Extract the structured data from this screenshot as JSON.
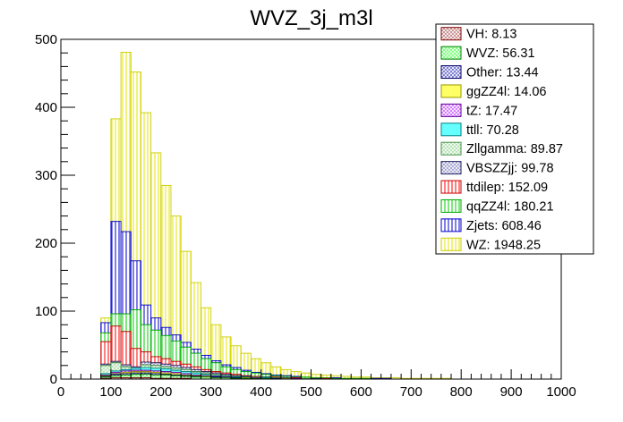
{
  "chart_data": {
    "type": "bar",
    "title": "WVZ_3j_m3l",
    "xlabel": "",
    "ylabel": "",
    "xlim": [
      0,
      1000
    ],
    "ylim": [
      0,
      500
    ],
    "x_ticks": [
      0,
      100,
      200,
      300,
      400,
      500,
      600,
      700,
      800,
      900,
      1000
    ],
    "y_ticks": [
      0,
      100,
      200,
      300,
      400,
      500
    ],
    "stacked": true,
    "bin_width": 20,
    "bins_start": [
      80,
      100,
      120,
      140,
      160,
      180,
      200,
      220,
      240,
      260,
      280,
      300,
      320,
      340,
      360,
      380,
      400,
      420,
      440,
      460,
      480,
      500,
      520,
      540,
      560,
      580,
      600,
      620,
      640,
      660,
      680,
      700,
      720,
      740,
      760,
      780,
      800,
      820,
      840,
      860,
      880,
      900
    ],
    "stack_totals": [
      90,
      383,
      481,
      452,
      392,
      333,
      285,
      240,
      188,
      142,
      105,
      80,
      62,
      49,
      38,
      30,
      24,
      18,
      14,
      11,
      9,
      7,
      6,
      5,
      4,
      3,
      3,
      2,
      2,
      2,
      1,
      1,
      1,
      1,
      1,
      0,
      0,
      0,
      0,
      0,
      0,
      0
    ],
    "boundaries": {
      "VH": [
        1,
        2,
        2,
        2,
        2,
        1,
        1,
        1,
        1,
        0,
        0,
        0,
        0,
        0,
        0,
        0,
        0,
        0,
        0,
        0,
        0,
        0,
        0,
        0,
        0,
        0,
        0,
        0,
        0,
        0,
        0,
        0,
        0,
        0,
        0,
        0,
        0,
        0,
        0,
        0,
        0,
        0
      ],
      "WVZ": [
        3,
        5,
        6,
        7,
        7,
        6,
        6,
        5,
        4,
        3,
        3,
        2,
        2,
        1,
        1,
        1,
        1,
        0,
        0,
        0,
        0,
        0,
        0,
        0,
        0,
        0,
        0,
        0,
        0,
        0,
        0,
        0,
        0,
        0,
        0,
        0,
        0,
        0,
        0,
        0,
        0,
        0
      ],
      "Other": [
        4,
        7,
        8,
        9,
        9,
        8,
        7,
        6,
        5,
        4,
        3,
        3,
        2,
        2,
        1,
        1,
        1,
        1,
        0,
        0,
        0,
        0,
        0,
        0,
        0,
        0,
        0,
        0,
        0,
        0,
        0,
        0,
        0,
        0,
        0,
        0,
        0,
        0,
        0,
        0,
        0,
        0
      ],
      "ggZZ4l": [
        5,
        8,
        10,
        11,
        11,
        10,
        9,
        8,
        6,
        5,
        4,
        3,
        2,
        2,
        2,
        1,
        1,
        1,
        1,
        0,
        0,
        0,
        0,
        0,
        0,
        0,
        0,
        0,
        0,
        0,
        0,
        0,
        0,
        0,
        0,
        0,
        0,
        0,
        0,
        0,
        0,
        0
      ],
      "tZ": [
        6,
        10,
        12,
        13,
        13,
        12,
        11,
        10,
        8,
        6,
        5,
        4,
        3,
        2,
        2,
        2,
        1,
        1,
        1,
        1,
        0,
        0,
        0,
        0,
        0,
        0,
        0,
        0,
        0,
        0,
        0,
        0,
        0,
        0,
        0,
        0,
        0,
        0,
        0,
        0,
        0,
        0
      ],
      "ttll": [
        8,
        12,
        14,
        16,
        17,
        16,
        15,
        13,
        11,
        9,
        7,
        5,
        4,
        3,
        3,
        2,
        2,
        1,
        1,
        1,
        0,
        0,
        0,
        0,
        0,
        0,
        0,
        0,
        0,
        0,
        0,
        0,
        0,
        0,
        0,
        0,
        0,
        0,
        0,
        0,
        0,
        0
      ],
      "Zllgamma": [
        20,
        24,
        18,
        16,
        21,
        20,
        18,
        16,
        14,
        11,
        9,
        7,
        5,
        4,
        3,
        3,
        2,
        2,
        1,
        1,
        1,
        0,
        0,
        0,
        0,
        0,
        0,
        0,
        0,
        0,
        0,
        0,
        0,
        0,
        0,
        0,
        0,
        0,
        0,
        0,
        0,
        0
      ],
      "VBSZZjj": [
        22,
        26,
        21,
        18,
        25,
        24,
        22,
        20,
        17,
        14,
        11,
        9,
        7,
        5,
        4,
        3,
        3,
        2,
        2,
        1,
        1,
        1,
        0,
        0,
        0,
        0,
        0,
        0,
        0,
        0,
        0,
        0,
        0,
        0,
        0,
        0,
        0,
        0,
        0,
        0,
        0,
        0
      ],
      "ttdilep": [
        55,
        78,
        70,
        45,
        40,
        33,
        30,
        26,
        22,
        18,
        14,
        11,
        9,
        7,
        5,
        4,
        3,
        3,
        2,
        2,
        1,
        1,
        1,
        0,
        0,
        0,
        0,
        0,
        0,
        0,
        0,
        0,
        0,
        0,
        0,
        0,
        0,
        0,
        0,
        0,
        0,
        0
      ],
      "qqZZ4l": [
        68,
        96,
        96,
        102,
        80,
        72,
        64,
        56,
        47,
        38,
        30,
        24,
        18,
        14,
        11,
        9,
        7,
        5,
        4,
        3,
        3,
        2,
        2,
        1,
        1,
        1,
        1,
        0,
        0,
        0,
        0,
        0,
        0,
        0,
        0,
        0,
        0,
        0,
        0,
        0,
        0,
        0
      ],
      "Zjets": [
        83,
        232,
        217,
        174,
        109,
        90,
        76,
        65,
        54,
        44,
        35,
        27,
        21,
        17,
        13,
        10,
        8,
        6,
        5,
        4,
        3,
        2,
        2,
        2,
        1,
        1,
        1,
        1,
        1,
        0,
        0,
        0,
        0,
        0,
        0,
        0,
        0,
        0,
        0,
        0,
        0,
        0
      ],
      "WZ": [
        90,
        383,
        481,
        452,
        392,
        333,
        285,
        240,
        188,
        142,
        105,
        80,
        62,
        49,
        38,
        30,
        24,
        18,
        14,
        11,
        9,
        7,
        6,
        5,
        4,
        3,
        3,
        2,
        2,
        2,
        1,
        1,
        1,
        1,
        1,
        0,
        0,
        0,
        0,
        0,
        0,
        0
      ]
    },
    "series": [
      {
        "name": "VH: 8.13",
        "key": "VH",
        "fill": "#c08080",
        "stroke": "#800000",
        "pattern": "cross"
      },
      {
        "name": "WVZ: 56.31",
        "key": "WVZ",
        "fill": "#66ff66",
        "stroke": "#008000",
        "pattern": "cross"
      },
      {
        "name": "Other: 13.44",
        "key": "Other",
        "fill": "#6666cc",
        "stroke": "#000066",
        "pattern": "cross"
      },
      {
        "name": "ggZZ4l: 14.06",
        "key": "ggZZ4l",
        "fill": "#ffff66",
        "stroke": "#999900",
        "pattern": "solid"
      },
      {
        "name": "tZ: 17.47",
        "key": "tZ",
        "fill": "#cc66ff",
        "stroke": "#660099",
        "pattern": "cross"
      },
      {
        "name": "ttll: 70.28",
        "key": "ttll",
        "fill": "#66ffff",
        "stroke": "#008080",
        "pattern": "solid"
      },
      {
        "name": "Zllgamma: 89.87",
        "key": "Zllgamma",
        "fill": "#aaddaa",
        "stroke": "#409040",
        "pattern": "cross"
      },
      {
        "name": "VBSZZjj: 99.78",
        "key": "VBSZZjj",
        "fill": "#9999cc",
        "stroke": "#202060",
        "pattern": "cross"
      },
      {
        "name": "ttdilep: 152.09",
        "key": "ttdilep",
        "fill": "#ff0000",
        "stroke": "#cc0000",
        "pattern": "vline"
      },
      {
        "name": "qqZZ4l: 180.21",
        "key": "qqZZ4l",
        "fill": "#00cc00",
        "stroke": "#00aa00",
        "pattern": "vline"
      },
      {
        "name": "Zjets: 608.46",
        "key": "Zjets",
        "fill": "#0000cc",
        "stroke": "#0000cc",
        "pattern": "vline"
      },
      {
        "name": "WZ: 1948.25",
        "key": "WZ",
        "fill": "#e6e600",
        "stroke": "#cccc00",
        "pattern": "vline"
      }
    ]
  }
}
